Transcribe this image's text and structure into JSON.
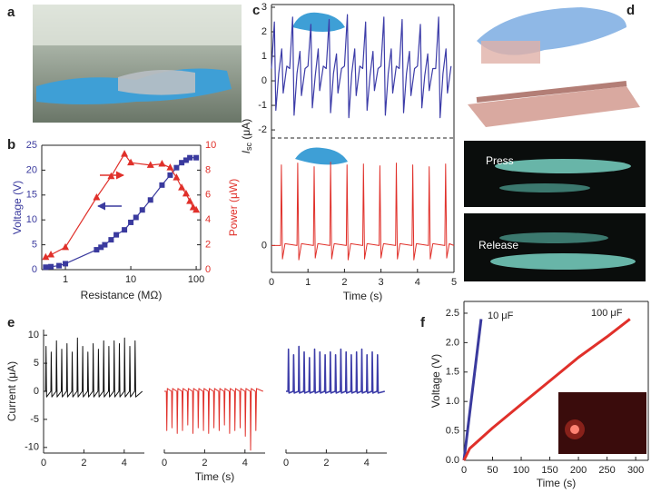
{
  "panel_labels": [
    "a",
    "b",
    "c",
    "d",
    "e",
    "f"
  ],
  "photo_labels": [
    "Press",
    "Release"
  ],
  "chart_data": [
    {
      "type": "line",
      "xlabel": "Resistance (MΩ)",
      "ylabel": "Voltage (V)",
      "y2label": "Power (μW)",
      "xlog": true,
      "xlim": [
        0.435,
        117
      ],
      "xticks": [
        1,
        10,
        100
      ],
      "ylim": [
        0,
        25
      ],
      "yticks": [
        0,
        5,
        10,
        15,
        20,
        25
      ],
      "y2lim": [
        0,
        10
      ],
      "y2ticks": [
        0,
        2,
        4,
        6,
        8,
        10
      ],
      "series": [
        {
          "color": "#3a3a9e",
          "marker": "square",
          "x": [
            0.5,
            0.6,
            0.8,
            1,
            3,
            3.5,
            4,
            5,
            6,
            8,
            10,
            12,
            15,
            20,
            30,
            40,
            50,
            60,
            70,
            80,
            100
          ],
          "values": [
            0.5,
            0.6,
            0.8,
            1.2,
            4,
            4.5,
            5,
            6,
            7,
            8,
            9.5,
            10.5,
            12,
            14,
            17,
            19,
            20.5,
            21.5,
            22,
            22.5,
            22.5
          ]
        },
        {
          "color": "#e0302a",
          "marker": "triangle",
          "axis": "y2",
          "x": [
            0.5,
            0.6,
            1,
            3,
            5,
            8,
            10,
            20,
            30,
            40,
            50,
            60,
            70,
            80,
            90,
            100
          ],
          "values": [
            1,
            1.2,
            1.8,
            5.8,
            7.5,
            9.3,
            8.6,
            8.4,
            8.5,
            8.2,
            7.4,
            6.6,
            6.1,
            5.5,
            5,
            4.8
          ]
        }
      ]
    },
    {
      "type": "line",
      "ylabel": {
        "main": "I",
        "sub": "sc",
        "rest": " (μA)"
      },
      "xlim": [
        0,
        5
      ],
      "ylim": [
        -2.33,
        3.11
      ],
      "yticks": [
        -2,
        -1,
        0,
        1,
        2,
        3
      ],
      "x": [
        0,
        0.08,
        0.12,
        0.2,
        0.28,
        0.32,
        0.42,
        0.5,
        0.58,
        0.62,
        0.7,
        0.78,
        0.82,
        0.92,
        1,
        1.08,
        1.12,
        1.2,
        1.28,
        1.32,
        1.42,
        1.5,
        1.58,
        1.62,
        1.7,
        1.78,
        1.82,
        1.92,
        2,
        2.08,
        2.12,
        2.2,
        2.28,
        2.32,
        2.42,
        2.5,
        2.58,
        2.62,
        2.7,
        2.78,
        2.82,
        2.92,
        3,
        3.08,
        3.12,
        3.2,
        3.28,
        3.32,
        3.42,
        3.5,
        3.58,
        3.62,
        3.7,
        3.78,
        3.82,
        3.92,
        4,
        4.08,
        4.12,
        4.2,
        4.28,
        4.32,
        4.42,
        4.5,
        4.58,
        4.62,
        4.7,
        4.78,
        4.82,
        4.92
      ],
      "series": [
        {
          "color": "#3c3ca8",
          "values": [
            0.5,
            2.4,
            -1.2,
            0.3,
            1.3,
            -0.5,
            0.6,
            0.5,
            2.6,
            -1.4,
            0.3,
            1.2,
            -0.6,
            0.5,
            0.6,
            2.3,
            -1.1,
            0.2,
            1.3,
            -0.4,
            0.6,
            0.5,
            2.5,
            -1.3,
            0.3,
            1.1,
            -0.5,
            0.5,
            0.6,
            2.7,
            -1.5,
            0.3,
            1.3,
            -0.6,
            0.6,
            0.5,
            2.4,
            -1.2,
            0.2,
            1.2,
            -0.4,
            0.5,
            0.6,
            2.6,
            -1.4,
            0.3,
            1.3,
            -0.5,
            0.6,
            0.5,
            2.5,
            -1.3,
            0.3,
            1.2,
            -0.6,
            0.5,
            0.6,
            2.3,
            -1.1,
            0.2,
            1.1,
            -0.4,
            0.5,
            0.5,
            2.6,
            -1.5,
            0.3,
            1.3,
            -0.5,
            0.6
          ]
        }
      ]
    },
    {
      "type": "line",
      "xlabel": "Time (s)",
      "xlim": [
        0,
        5
      ],
      "xticks": [
        0,
        1,
        2,
        3,
        4,
        5
      ],
      "ylim": [
        -3,
        12
      ],
      "yticks": [
        0
      ],
      "x": [
        0,
        0.25,
        0.27,
        0.3,
        0.37,
        0.7,
        0.72,
        0.75,
        0.82,
        1.15,
        1.17,
        1.2,
        1.27,
        1.6,
        1.62,
        1.65,
        1.72,
        2.05,
        2.07,
        2.1,
        2.17,
        2.5,
        2.52,
        2.55,
        2.62,
        2.95,
        2.97,
        3,
        3.07,
        3.4,
        3.42,
        3.45,
        3.52,
        3.85,
        3.87,
        3.9,
        3.97,
        4.3,
        4.32,
        4.35,
        4.42,
        4.75,
        4.77,
        4.8,
        4.87,
        5
      ],
      "series": [
        {
          "color": "#e0302a",
          "values": [
            0,
            0,
            9,
            -1.5,
            0.2,
            0,
            9.2,
            -1.6,
            0.2,
            0,
            8.8,
            -1.4,
            0.2,
            0,
            9.3,
            -1.5,
            0.2,
            0,
            9,
            -1.6,
            0.2,
            0,
            9.1,
            -1.5,
            0.2,
            0,
            8.9,
            -1.4,
            0.2,
            0,
            9.2,
            -1.5,
            0.2,
            0,
            9,
            -1.6,
            0.2,
            0,
            8.8,
            -1.5,
            0.2,
            0,
            9.1,
            -1.4,
            0.2,
            0
          ]
        }
      ]
    },
    {
      "type": "line",
      "ylabel": "Current (μA)",
      "xlim": [
        0,
        5
      ],
      "xticks": [
        0,
        2,
        4
      ],
      "ylim": [
        -11,
        11
      ],
      "yticks": [
        -10,
        -5,
        0,
        5,
        10
      ],
      "x": [
        0,
        0.1,
        0.12,
        0.15,
        0.36,
        0.38,
        0.41,
        0.62,
        0.64,
        0.67,
        0.88,
        0.9,
        0.93,
        1.14,
        1.16,
        1.19,
        1.4,
        1.42,
        1.45,
        1.66,
        1.68,
        1.71,
        1.92,
        1.94,
        1.97,
        2.18,
        2.2,
        2.23,
        2.44,
        2.46,
        2.49,
        2.7,
        2.72,
        2.75,
        2.96,
        2.98,
        3.01,
        3.22,
        3.24,
        3.27,
        3.48,
        3.5,
        3.53,
        3.74,
        3.76,
        3.79,
        4,
        4.02,
        4.05,
        4.26,
        4.28,
        4.31,
        4.52,
        4.54,
        4.57,
        4.9
      ],
      "series": [
        {
          "color": "#111111",
          "values": [
            0,
            0,
            8,
            -1,
            0,
            7,
            -1,
            0,
            9,
            -1,
            0,
            7.5,
            -1,
            0,
            8.5,
            -1,
            0,
            7,
            -1,
            0,
            9.5,
            -1,
            0,
            8,
            -1,
            0,
            7,
            -1,
            0,
            8.5,
            -1,
            0,
            7.5,
            -1,
            0,
            9,
            -1,
            0,
            8,
            -1,
            0,
            9,
            -1,
            0,
            8.5,
            -1,
            0,
            9.5,
            -1,
            0,
            8,
            -1,
            0,
            9,
            -1,
            0
          ]
        }
      ]
    },
    {
      "type": "line",
      "xlabel": "Time (s)",
      "xlim": [
        0,
        5
      ],
      "xticks": [
        0,
        2,
        4
      ],
      "ylim": [
        -11,
        11
      ],
      "x": [
        0,
        0.1,
        0.12,
        0.15,
        0.36,
        0.38,
        0.41,
        0.62,
        0.64,
        0.67,
        0.88,
        0.9,
        0.93,
        1.14,
        1.16,
        1.19,
        1.4,
        1.42,
        1.45,
        1.66,
        1.68,
        1.71,
        1.92,
        1.94,
        1.97,
        2.18,
        2.2,
        2.23,
        2.44,
        2.46,
        2.49,
        2.7,
        2.72,
        2.75,
        2.96,
        2.98,
        3.01,
        3.22,
        3.24,
        3.27,
        3.48,
        3.5,
        3.53,
        3.74,
        3.76,
        3.79,
        4,
        4.02,
        4.05,
        4.26,
        4.28,
        4.31,
        4.52,
        4.54,
        4.57,
        4.9
      ],
      "series": [
        {
          "color": "#e0302a",
          "values": [
            0,
            0,
            -7,
            0.5,
            0,
            -6.5,
            0.5,
            0,
            -7.5,
            0.5,
            0,
            -7,
            0.5,
            0,
            -6,
            0.5,
            0,
            -7.5,
            0.5,
            0,
            -6.5,
            0.5,
            0,
            -7,
            0.5,
            0,
            -7.5,
            0.5,
            0,
            -6.5,
            0.5,
            0,
            -7,
            0.5,
            0,
            -6,
            0.5,
            0,
            -7.5,
            0.5,
            0,
            -7,
            0.5,
            0,
            -6.5,
            0.5,
            0,
            -8,
            0.5,
            0,
            -10.5,
            0.5,
            0,
            -7,
            0.5,
            0
          ]
        }
      ]
    },
    {
      "type": "line",
      "xlim": [
        0,
        5
      ],
      "xticks": [
        0,
        2,
        4
      ],
      "ylim": [
        -11,
        11
      ],
      "x": [
        0,
        0.1,
        0.12,
        0.15,
        0.36,
        0.38,
        0.41,
        0.62,
        0.64,
        0.67,
        0.88,
        0.9,
        0.93,
        1.14,
        1.16,
        1.19,
        1.4,
        1.42,
        1.45,
        1.66,
        1.68,
        1.71,
        1.92,
        1.94,
        1.97,
        2.18,
        2.2,
        2.23,
        2.44,
        2.46,
        2.49,
        2.7,
        2.72,
        2.75,
        2.96,
        2.98,
        3.01,
        3.22,
        3.24,
        3.27,
        3.48,
        3.5,
        3.53,
        3.74,
        3.76,
        3.79,
        4,
        4.02,
        4.05,
        4.26,
        4.28,
        4.31,
        4.52,
        4.54,
        4.57,
        4.9
      ],
      "series": [
        {
          "color": "#3c3ca8",
          "values": [
            0,
            0,
            7.5,
            -0.3,
            0,
            6.5,
            -0.3,
            0,
            8,
            -0.3,
            0,
            7,
            -0.3,
            0,
            6,
            -0.3,
            0,
            7.5,
            -0.3,
            0,
            7,
            -0.3,
            0,
            6.5,
            -0.3,
            0,
            7,
            -0.3,
            0,
            6.5,
            -0.3,
            0,
            7.5,
            -0.3,
            0,
            7,
            -0.3,
            0,
            6.5,
            -0.3,
            0,
            7,
            -0.3,
            0,
            7.5,
            -0.3,
            0,
            6.5,
            -0.3,
            0,
            7,
            -0.3,
            0,
            6.5,
            -0.3,
            0
          ]
        }
      ]
    },
    {
      "type": "line",
      "xlabel": "Time (s)",
      "ylabel": "Voltage (V)",
      "xlim": [
        0,
        322
      ],
      "xticks": [
        0,
        50,
        100,
        150,
        200,
        250,
        300
      ],
      "ylim": [
        0,
        2.7
      ],
      "yticks": [
        {
          "value": 0,
          "label": "0.0"
        },
        0.5,
        {
          "value": 1,
          "label": "1.0"
        },
        1.5,
        {
          "value": 2,
          "label": "2.0"
        },
        2.5
      ],
      "series": [
        {
          "name": "10 μF",
          "color": "#3a3a9e",
          "x": [
            0,
            30
          ],
          "values": [
            0,
            2.4
          ]
        },
        {
          "name": "100 μF",
          "color": "#e0302a",
          "x": [
            0,
            10,
            50,
            100,
            150,
            200,
            250,
            290
          ],
          "values": [
            0,
            0.2,
            0.55,
            0.95,
            1.35,
            1.75,
            2.1,
            2.4
          ]
        }
      ]
    }
  ]
}
